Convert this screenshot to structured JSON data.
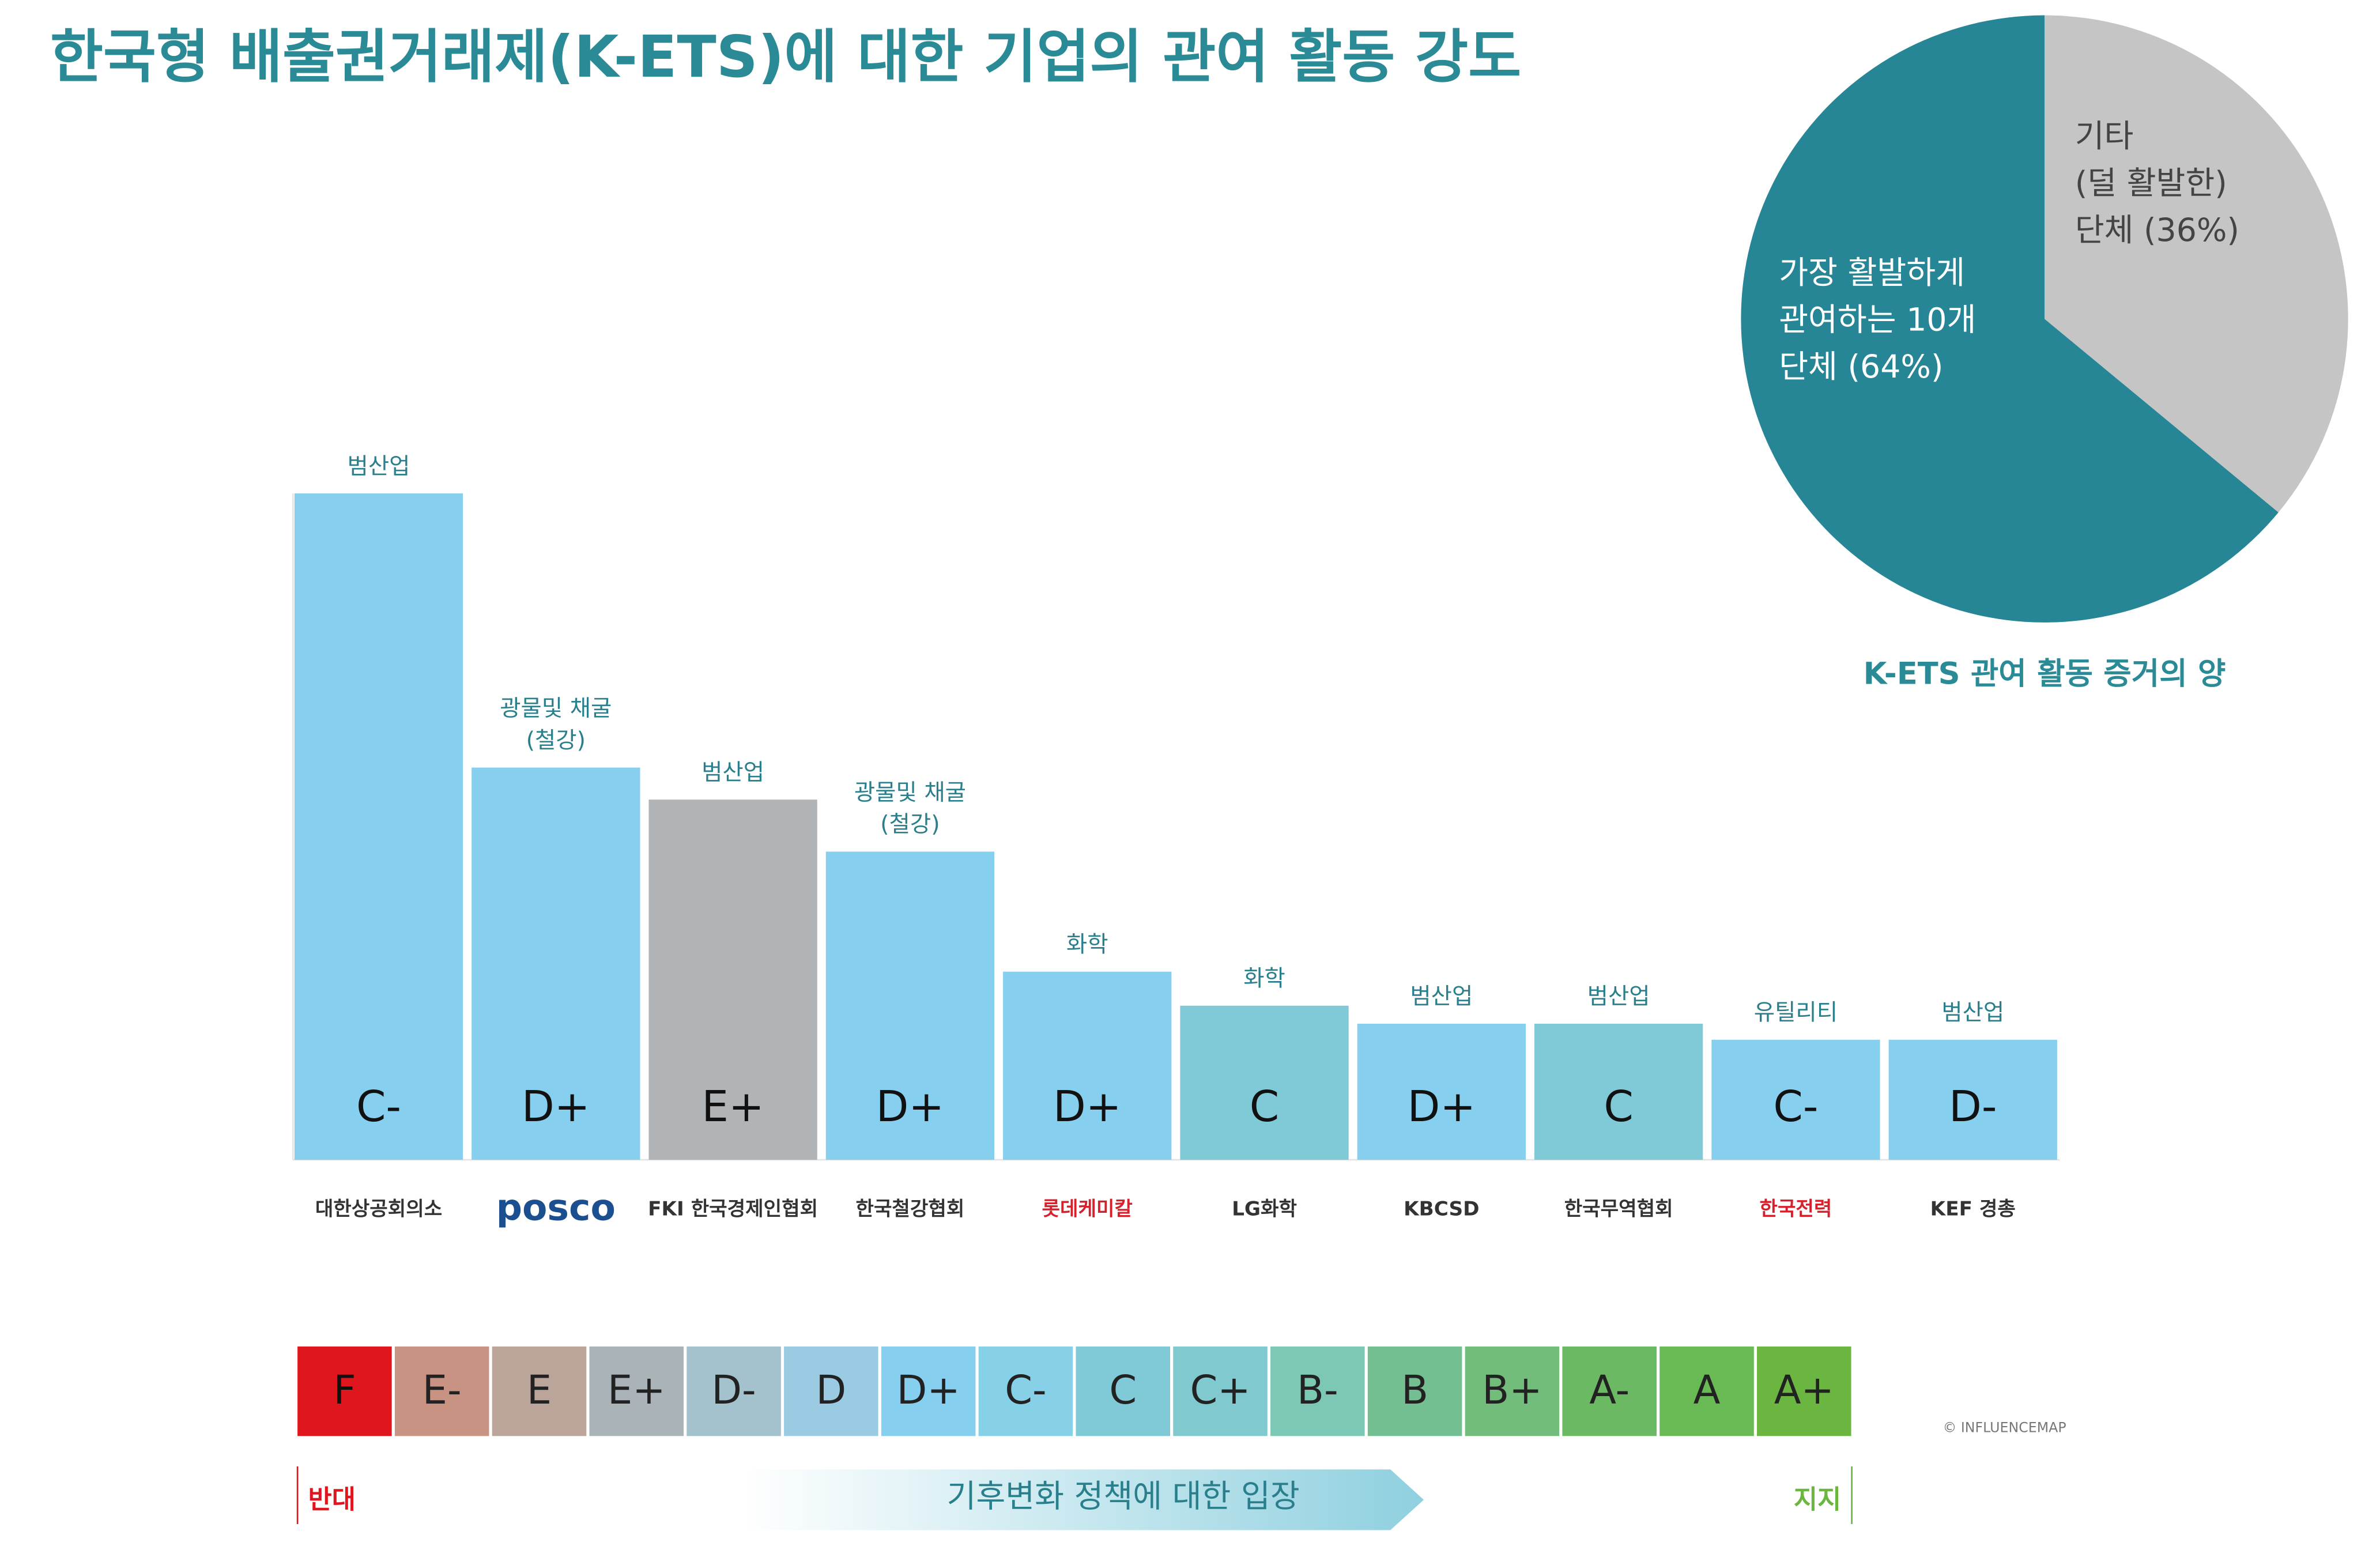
{
  "chart_data": [
    {
      "type": "bar",
      "title": "한국형 배출권거래제(K-ETS)에 대한 기업의 관여 활동 강도",
      "categories": [
        "대한상공회의소",
        "posco",
        "FKI 한국경제인협회",
        "한국철강협회",
        "롯데케미칼",
        "LG화학",
        "KBCSD",
        "한국무역협회",
        "한국전력",
        "KEF 경총"
      ],
      "values": [
        3.33,
        1.96,
        1.8,
        1.54,
        0.94,
        0.77,
        0.68,
        0.68,
        0.6,
        0.6
      ],
      "grades": [
        "C-",
        "D+",
        "E+",
        "D+",
        "D+",
        "C",
        "D+",
        "C",
        "C-",
        "D-"
      ],
      "sectors": [
        [
          "범산업"
        ],
        [
          "광물및 채굴",
          "(철강)"
        ],
        [
          "범산업"
        ],
        [
          "광물및 채굴",
          "(철강)"
        ],
        [
          "화학"
        ],
        [
          "화학"
        ],
        [
          "범산업"
        ],
        [
          "범산업"
        ],
        [
          "유틸리티"
        ],
        [
          "범산업"
        ]
      ],
      "colors": [
        "#87cfee",
        "#87cfee",
        "#b1b4b6",
        "#87cfee",
        "#87cfee",
        "#80cad8",
        "#87cfee",
        "#80cad8",
        "#87cfee",
        "#87cfee"
      ],
      "ylim": [
        0,
        3.33
      ]
    },
    {
      "type": "pie",
      "title": "K-ETS 관여 활동 증거의 양",
      "values": [
        64,
        36
      ],
      "labels": [
        [
          "가장 활발하게",
          "관여하는 10개",
          "단체 (64%)"
        ],
        [
          "기타",
          "(덜 활발한)",
          "단체 (36%)"
        ]
      ],
      "colors": [
        "#268696",
        "#c5c5c5"
      ]
    },
    {
      "type": "scale",
      "grades": [
        "F",
        "E-",
        "E",
        "E+",
        "D-",
        "D",
        "D+",
        "C-",
        "C",
        "C+",
        "B-",
        "B",
        "B+",
        "A-",
        "A",
        "A+"
      ],
      "colors": [
        "#e0161e",
        "#c99383",
        "#bba59b",
        "#aab3b8",
        "#a4c2cd",
        "#9bcbe3",
        "#87cfee",
        "#86d0e8",
        "#80cad8",
        "#80cacf",
        "#7dc8b4",
        "#73bf91",
        "#72bd7c",
        "#6bba63",
        "#69b954",
        "#6ab640"
      ],
      "left_label": "반대",
      "right_label": "지지",
      "axis_label": "기후변화 정책에 대한 입장",
      "credit": "© INFLUENCEMAP"
    }
  ]
}
